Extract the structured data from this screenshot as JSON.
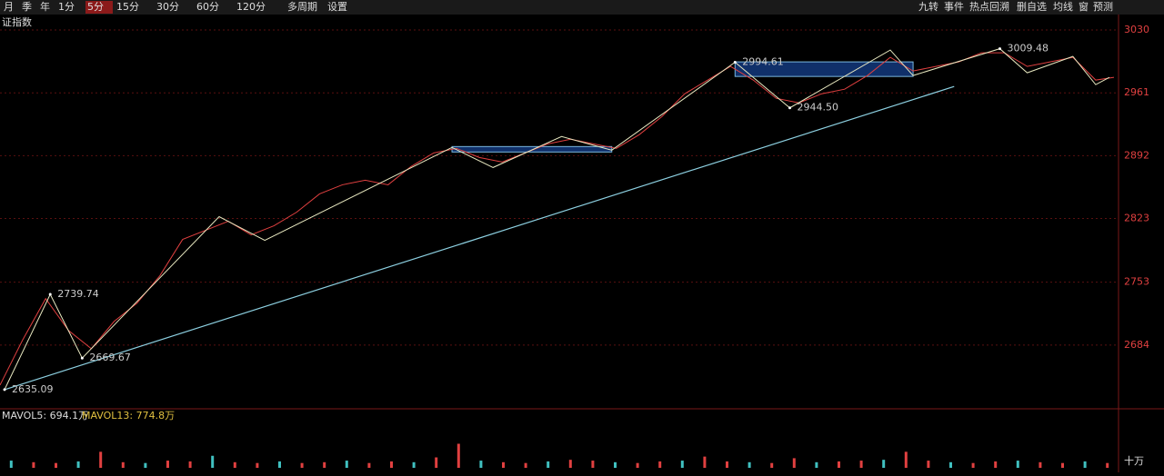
{
  "toolbar": {
    "left": [
      "月",
      "季",
      "年",
      "1分",
      "5分",
      "15分",
      "30分",
      "60分",
      "120分",
      "多周期",
      "设置"
    ],
    "active": "5分",
    "right": [
      "九转",
      "事件",
      "热点回溯",
      "删自选",
      "均线",
      "窗",
      "预测"
    ]
  },
  "chart_data": {
    "type": "line",
    "title": "证指数",
    "xlim": [
      0,
      245
    ],
    "ylim": [
      2617,
      3045
    ],
    "yticks": [
      2684,
      2753,
      2823,
      2892,
      2961,
      3030
    ],
    "grid": true,
    "grid_color": "#5a1010",
    "series": [
      {
        "color": "#e04040",
        "x": [
          0,
          5,
          10,
          15,
          20,
          25,
          30,
          35,
          40,
          45,
          50,
          55,
          60,
          65,
          70,
          75,
          80,
          85,
          90,
          95,
          100,
          105,
          110,
          115,
          120,
          125,
          130,
          135,
          140,
          145,
          150,
          155,
          160,
          165,
          170,
          175,
          180,
          185,
          190,
          195,
          200,
          205,
          210,
          215,
          220,
          225,
          230,
          235,
          240,
          244
        ],
        "values": [
          2640,
          2690,
          2735,
          2700,
          2680,
          2710,
          2730,
          2760,
          2800,
          2810,
          2820,
          2805,
          2815,
          2830,
          2850,
          2860,
          2865,
          2860,
          2880,
          2895,
          2900,
          2890,
          2885,
          2895,
          2905,
          2910,
          2905,
          2900,
          2915,
          2935,
          2960,
          2975,
          2990,
          2975,
          2955,
          2950,
          2960,
          2965,
          2980,
          3000,
          2985,
          2990,
          2995,
          3005,
          3005,
          2990,
          2995,
          3000,
          2975,
          2978
        ]
      },
      {
        "color": "#e8e8c0",
        "x": [
          1,
          11,
          18,
          48,
          58,
          99,
          108,
          123,
          134,
          161,
          173,
          195,
          200,
          219,
          225,
          235,
          240,
          243
        ],
        "values": [
          2635.09,
          2739.74,
          2669.67,
          2825,
          2799,
          2901,
          2879,
          2913,
          2898,
          2994.61,
          2944.5,
          3008,
          2980,
          3009.48,
          2983,
          3001,
          2970,
          2978
        ]
      }
    ],
    "annotations": [
      {
        "x": 1,
        "y": 2635.09,
        "label": "2635.09"
      },
      {
        "x": 11,
        "y": 2739.74,
        "label": "2739.74"
      },
      {
        "x": 18,
        "y": 2669.67,
        "label": "2669.67"
      },
      {
        "x": 161,
        "y": 2994.61,
        "label": "2994.61"
      },
      {
        "x": 173,
        "y": 2944.5,
        "label": "2944.50"
      },
      {
        "x": 219,
        "y": 3009.48,
        "label": "3009.48"
      }
    ],
    "trend": {
      "x": [
        1,
        209
      ],
      "values": [
        2635,
        2968
      ],
      "color": "#8ccfe0"
    },
    "zones": [
      {
        "x": [
          99,
          134
        ],
        "values": [
          2896,
          2902
        ]
      },
      {
        "x": [
          161,
          200
        ],
        "values": [
          2979,
          2995
        ]
      }
    ],
    "volume": {
      "label": "十万",
      "mavol5": "MAVOL5: 694.1万",
      "mavol13": "MAVOL13: 774.8万",
      "ylim": [
        0,
        600
      ],
      "values": [
        90,
        70,
        60,
        80,
        200,
        70,
        60,
        90,
        80,
        150,
        70,
        60,
        80,
        60,
        70,
        90,
        60,
        80,
        70,
        130,
        300,
        90,
        70,
        60,
        80,
        100,
        90,
        70,
        60,
        80,
        90,
        140,
        80,
        70,
        60,
        120,
        70,
        80,
        90,
        100,
        200,
        90,
        70,
        60,
        80,
        90,
        70,
        60,
        80,
        60
      ]
    }
  }
}
